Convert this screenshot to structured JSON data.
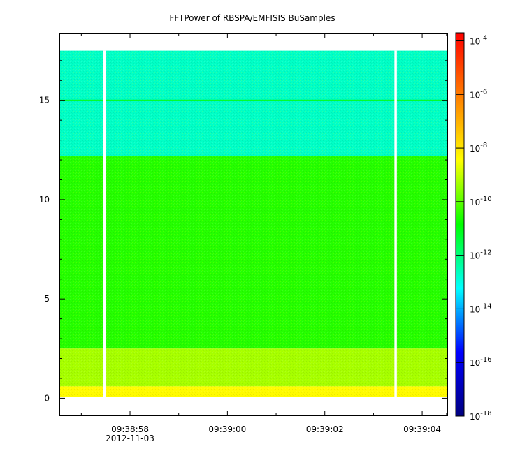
{
  "chart_data": {
    "type": "heatmap",
    "title": "FFTPower of RBSPA/EMFISIS  BuSamples",
    "xlabel": "",
    "ylabel": "",
    "x_ticks": [
      {
        "t": 58,
        "label": "09:38:58"
      },
      {
        "t": 60,
        "label": "09:39:00"
      },
      {
        "t": 62,
        "label": "09:39:02"
      },
      {
        "t": 64,
        "label": "09:39:04"
      }
    ],
    "x_minor_ticks": [
      57,
      59,
      61,
      63,
      64.5
    ],
    "x_date_label": "2012-11-03",
    "xlim": [
      56.55,
      64.53
    ],
    "ylim": [
      -0.9,
      18.4
    ],
    "y_ticks": [
      0,
      5,
      10,
      15
    ],
    "data_extent": {
      "t": [
        56.55,
        64.53
      ],
      "freq": [
        0.05,
        17.5
      ]
    },
    "gaps": [
      {
        "t_start": 57.45,
        "t_end": 57.5
      },
      {
        "t_start": 63.43,
        "t_end": 63.48
      }
    ],
    "bands": [
      {
        "freq_range": [
          12.2,
          17.5
        ],
        "log_power": -12.7,
        "description_color": "#1ee670"
      },
      {
        "freq_range": [
          2.5,
          12.2
        ],
        "log_power": -10.5,
        "description_color": "#33e21c"
      },
      {
        "freq_range": [
          0.6,
          2.5
        ],
        "log_power": -9.3,
        "description_color": "#cfe61a"
      },
      {
        "freq_range": [
          0.05,
          0.6
        ],
        "log_power": -8.4,
        "description_color": "#f4a81a"
      }
    ],
    "line": {
      "freq": 15.0,
      "log_power": -11.0
    },
    "colorbar": {
      "scale": "log",
      "range": [
        -18,
        -3.7
      ],
      "ticks": [
        {
          "exp": -4,
          "base": "10",
          "sup": "-4"
        },
        {
          "exp": -6,
          "base": "10",
          "sup": "-6"
        },
        {
          "exp": -8,
          "base": "10",
          "sup": "-8"
        },
        {
          "exp": -10,
          "base": "10",
          "sup": "-10"
        },
        {
          "exp": -12,
          "base": "10",
          "sup": "-12"
        },
        {
          "exp": -14,
          "base": "10",
          "sup": "-14"
        },
        {
          "exp": -16,
          "base": "10",
          "sup": "-16"
        },
        {
          "exp": -18,
          "base": "10",
          "sup": "-18"
        }
      ],
      "colormap": [
        "#00007f",
        "#0000ff",
        "#00ffff",
        "#00ff00",
        "#ffff00",
        "#ff7f00",
        "#ff0000"
      ]
    },
    "colors": {
      "frame": "#000000",
      "background": "#ffffff",
      "gap": "#ffffff"
    }
  }
}
